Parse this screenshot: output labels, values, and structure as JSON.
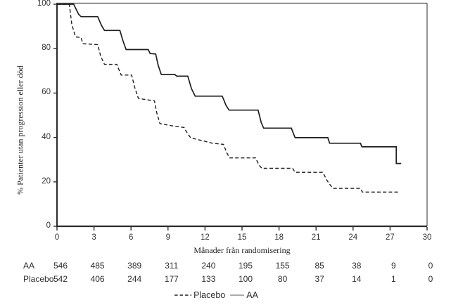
{
  "chart_data": {
    "type": "line",
    "variant": "kaplan-meier-step-curves",
    "title": "",
    "xlabel": "Månader från randomisering",
    "ylabel": "% Patienter utan progression eller död",
    "xlim": [
      0,
      30
    ],
    "ylim": [
      0,
      100
    ],
    "xticks": [
      0,
      3,
      6,
      9,
      12,
      15,
      18,
      21,
      24,
      27,
      30
    ],
    "yticks": [
      0,
      20,
      40,
      60,
      80,
      100
    ],
    "grid": "off",
    "legend_position": "bottom-center",
    "series": [
      {
        "name": "AA",
        "style": "solid",
        "color": "#1f1f1f",
        "points": [
          [
            0,
            100
          ],
          [
            1.35,
            100
          ],
          [
            1.75,
            95.5
          ],
          [
            1.95,
            94.4
          ],
          [
            3.3,
            94.4
          ],
          [
            3.6,
            90.5
          ],
          [
            3.85,
            88.2
          ],
          [
            5.1,
            88.2
          ],
          [
            5.35,
            83.5
          ],
          [
            5.6,
            79.6
          ],
          [
            7.4,
            79.6
          ],
          [
            7.55,
            77.8
          ],
          [
            8.0,
            77.6
          ],
          [
            8.2,
            72.5
          ],
          [
            8.45,
            68.4
          ],
          [
            9.55,
            68.4
          ],
          [
            9.7,
            67.6
          ],
          [
            10.6,
            67.6
          ],
          [
            10.9,
            62.0
          ],
          [
            11.2,
            58.6
          ],
          [
            13.4,
            58.6
          ],
          [
            13.7,
            54.5
          ],
          [
            13.95,
            52.3
          ],
          [
            16.3,
            52.3
          ],
          [
            16.55,
            46.8
          ],
          [
            16.75,
            44.2
          ],
          [
            19.0,
            44.2
          ],
          [
            19.15,
            42.0
          ],
          [
            19.3,
            39.9
          ],
          [
            21.95,
            39.9
          ],
          [
            22.1,
            37.4
          ],
          [
            24.6,
            37.4
          ],
          [
            24.72,
            35.8
          ],
          [
            27.5,
            35.8
          ],
          [
            27.5,
            28.3
          ],
          [
            27.9,
            28.3
          ]
        ]
      },
      {
        "name": "Placebo",
        "style": "dashed",
        "color": "#1f1f1f",
        "points": [
          [
            0,
            100
          ],
          [
            1.0,
            100
          ],
          [
            1.2,
            91.0
          ],
          [
            1.5,
            85.3
          ],
          [
            1.95,
            85.0
          ],
          [
            2.1,
            82.2
          ],
          [
            3.3,
            81.8
          ],
          [
            3.55,
            76.5
          ],
          [
            3.85,
            72.9
          ],
          [
            4.85,
            72.9
          ],
          [
            5.05,
            70.2
          ],
          [
            5.2,
            68.1
          ],
          [
            6.05,
            68.1
          ],
          [
            6.3,
            62.5
          ],
          [
            6.6,
            57.6
          ],
          [
            7.0,
            57.2
          ],
          [
            7.9,
            56.5
          ],
          [
            8.1,
            50.8
          ],
          [
            8.35,
            46.2
          ],
          [
            9.3,
            45.3
          ],
          [
            10.3,
            44.5
          ],
          [
            10.55,
            42.0
          ],
          [
            10.85,
            39.8
          ],
          [
            11.6,
            38.8
          ],
          [
            12.6,
            37.4
          ],
          [
            13.5,
            36.9
          ],
          [
            13.75,
            33.2
          ],
          [
            14.0,
            30.8
          ],
          [
            16.1,
            30.8
          ],
          [
            16.35,
            27.8
          ],
          [
            16.6,
            26.1
          ],
          [
            19.1,
            26.1
          ],
          [
            19.3,
            24.3
          ],
          [
            21.55,
            24.3
          ],
          [
            21.9,
            20.5
          ],
          [
            22.35,
            17.1
          ],
          [
            24.6,
            17.1
          ],
          [
            24.75,
            15.4
          ],
          [
            27.7,
            15.4
          ]
        ]
      }
    ],
    "legend": [
      {
        "label": "Placebo",
        "style": "dashed"
      },
      {
        "label": "AA",
        "style": "solid"
      }
    ],
    "risk_table": {
      "timepoints": [
        0,
        3,
        6,
        9,
        12,
        15,
        18,
        21,
        24,
        27,
        30
      ],
      "rows": [
        {
          "label": "AA",
          "values": [
            546,
            485,
            389,
            311,
            240,
            195,
            155,
            85,
            38,
            9,
            0
          ]
        },
        {
          "label": "Placebo",
          "values": [
            542,
            406,
            244,
            177,
            133,
            100,
            80,
            37,
            14,
            1,
            0
          ]
        }
      ]
    },
    "colors": {
      "curve": "#1f1f1f",
      "axis": "#2b2b2b",
      "box_border": "#4d4d4d",
      "tick_text": "#333333",
      "legend_solid_sample": "#8f8f8f"
    }
  }
}
